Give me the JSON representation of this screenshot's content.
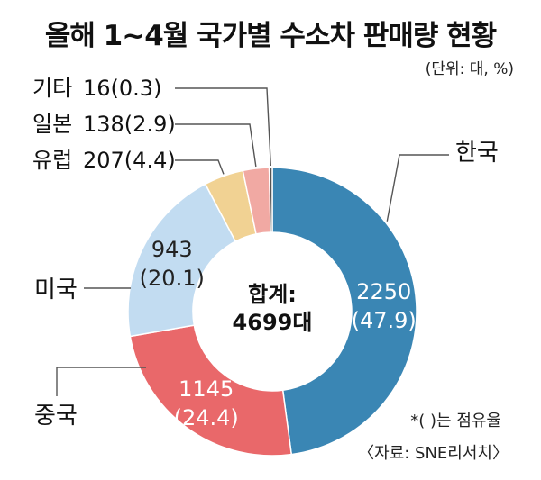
{
  "chart_data": {
    "type": "pie",
    "title": "올해 1~4월 국가별 수소차 판매량 현황",
    "unit_label": "(단위: 대, %)",
    "center_label": "합계:",
    "center_value": "4699대",
    "total": 4699,
    "slices": [
      {
        "label": "한국",
        "value": 2250,
        "value_text": "2250",
        "share_text": "(47.9)",
        "share": 47.9,
        "color": "#3a86b4"
      },
      {
        "label": "중국",
        "value": 1145,
        "value_text": "1145",
        "share_text": "(24.4)",
        "share": 24.4,
        "color": "#e9686a"
      },
      {
        "label": "미국",
        "value": 943,
        "value_text": "943",
        "share_text": "(20.1)",
        "share": 20.1,
        "color": "#c2dcf1"
      },
      {
        "label": "유럽",
        "value": 207,
        "value_text": "207",
        "share_text": "(4.4)",
        "share": 4.4,
        "color": "#f1d293"
      },
      {
        "label": "일본",
        "value": 138,
        "value_text": "138",
        "share_text": "(2.9)",
        "share": 2.9,
        "color": "#f1a9a3"
      },
      {
        "label": "기타",
        "value": 16,
        "value_text": "16",
        "share_text": "(0.3)",
        "share": 0.3,
        "color": "#555555"
      }
    ],
    "note": "*(  )는 점유율",
    "source": "〈자료: SNE리서치〉"
  }
}
